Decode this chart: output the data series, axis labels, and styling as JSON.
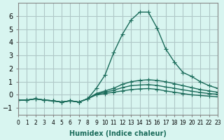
{
  "xlabel": "Humidex (Indice chaleur)",
  "ylabel": "",
  "xlim": [
    0,
    23
  ],
  "ylim": [
    -1.5,
    7
  ],
  "yticks": [
    -1,
    0,
    1,
    2,
    3,
    4,
    5,
    6
  ],
  "xticks": [
    0,
    1,
    2,
    3,
    4,
    5,
    6,
    7,
    8,
    9,
    10,
    11,
    12,
    13,
    14,
    15,
    16,
    17,
    18,
    19,
    20,
    21,
    22,
    23
  ],
  "bg_color": "#d8f5f0",
  "grid_color": "#b0c8c8",
  "line_color": "#1a6b5a",
  "lines": [
    {
      "x": [
        0,
        1,
        2,
        3,
        4,
        5,
        6,
        7,
        8,
        9,
        10,
        11,
        12,
        13,
        14,
        15,
        16,
        17,
        18,
        19,
        20,
        21,
        22,
        23
      ],
      "y": [
        -0.4,
        -0.4,
        -0.3,
        -0.4,
        -0.45,
        -0.55,
        -0.45,
        -0.55,
        -0.3,
        0.5,
        1.5,
        3.2,
        4.6,
        5.7,
        6.3,
        6.3,
        5.1,
        3.5,
        2.5,
        1.7,
        1.4,
        1.0,
        0.7,
        0.5
      ]
    },
    {
      "x": [
        0,
        1,
        2,
        3,
        4,
        5,
        6,
        7,
        8,
        9,
        10,
        11,
        12,
        13,
        14,
        15,
        16,
        17,
        18,
        19,
        20,
        21,
        22,
        23
      ],
      "y": [
        -0.4,
        -0.4,
        -0.3,
        -0.4,
        -0.45,
        -0.55,
        -0.45,
        -0.55,
        -0.3,
        0.1,
        0.3,
        0.5,
        0.8,
        1.0,
        1.1,
        1.15,
        1.1,
        1.0,
        0.85,
        0.7,
        0.55,
        0.4,
        0.3,
        0.2
      ]
    },
    {
      "x": [
        0,
        1,
        2,
        3,
        4,
        5,
        6,
        7,
        8,
        9,
        10,
        11,
        12,
        13,
        14,
        15,
        16,
        17,
        18,
        19,
        20,
        21,
        22,
        23
      ],
      "y": [
        -0.4,
        -0.4,
        -0.3,
        -0.4,
        -0.45,
        -0.55,
        -0.45,
        -0.55,
        -0.3,
        0.05,
        0.2,
        0.35,
        0.55,
        0.7,
        0.75,
        0.78,
        0.72,
        0.6,
        0.5,
        0.38,
        0.28,
        0.18,
        0.1,
        0.05
      ]
    },
    {
      "x": [
        0,
        1,
        2,
        3,
        4,
        5,
        6,
        7,
        8,
        9,
        10,
        11,
        12,
        13,
        14,
        15,
        16,
        17,
        18,
        19,
        20,
        21,
        22,
        23
      ],
      "y": [
        -0.4,
        -0.4,
        -0.3,
        -0.4,
        -0.45,
        -0.55,
        -0.45,
        -0.55,
        -0.3,
        0.0,
        0.1,
        0.2,
        0.3,
        0.4,
        0.45,
        0.48,
        0.42,
        0.3,
        0.2,
        0.1,
        0.0,
        -0.05,
        -0.1,
        -0.15
      ]
    }
  ]
}
